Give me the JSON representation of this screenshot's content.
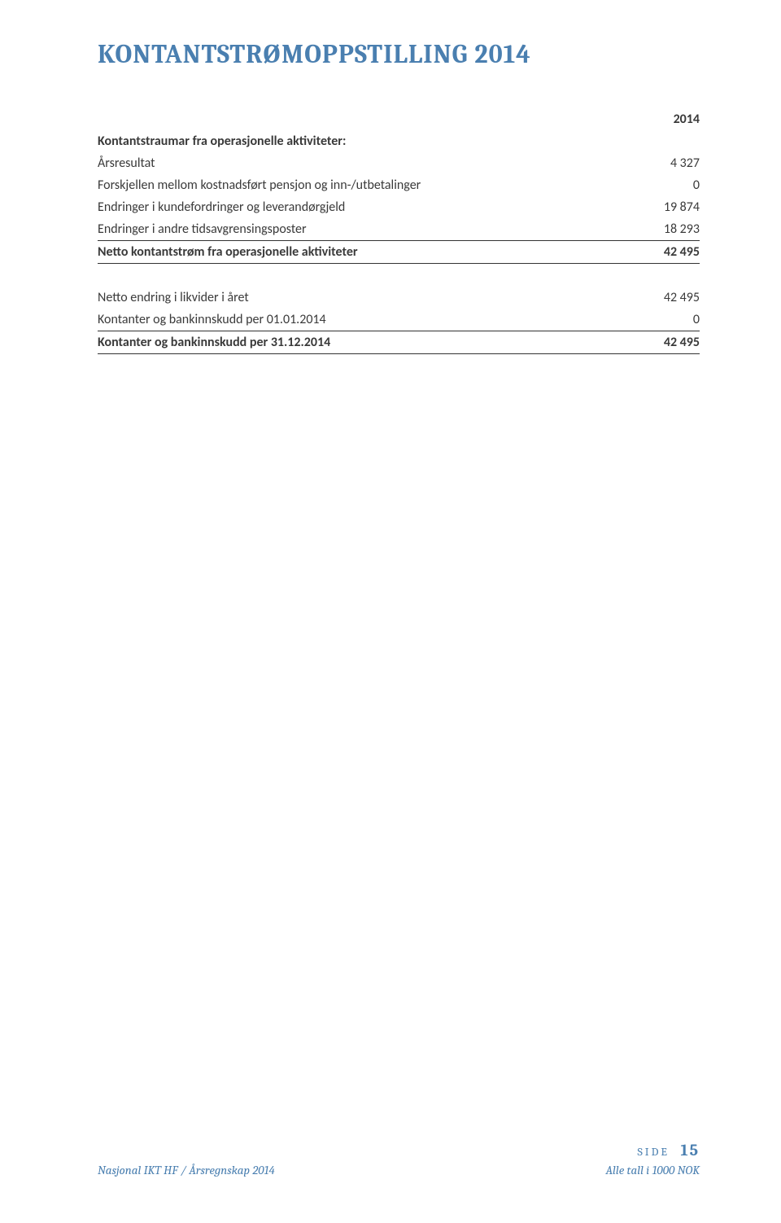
{
  "title": "KONTANTSTRØMOPPSTILLING 2014",
  "yearHeader": "2014",
  "sectionA": {
    "header": "Kontantstraumar fra operasjonelle aktiviteter:",
    "rows": [
      {
        "label": "Årsresultat",
        "value": "4 327"
      },
      {
        "label": "Forskjellen mellom kostnadsført pensjon og inn-/utbetalinger",
        "value": "0"
      },
      {
        "label": "Endringer i kundefordringer og leverandørgjeld",
        "value": "19 874"
      },
      {
        "label": "Endringer i andre tidsavgrensingsposter",
        "value": "18 293"
      }
    ],
    "total": {
      "label": "Netto kontantstrøm fra operasjonelle aktiviteter",
      "value": "42 495"
    }
  },
  "sectionB": {
    "rows": [
      {
        "label": "Netto endring i likvider i året",
        "value": "42 495"
      },
      {
        "label": "Kontanter og bankinnskudd per 01.01.2014",
        "value": "0"
      }
    ],
    "total": {
      "label": "Kontanter og bankinnskudd per 31.12.2014",
      "value": "42 495"
    }
  },
  "footer": {
    "left": "Nasjonal IKT HF / Årsregnskap 2014",
    "sideLabel": "SIDE",
    "pageNumber": "15",
    "sub": "Alle tall i  1000 NOK"
  },
  "colors": {
    "accent": "#4a7fb0",
    "text": "#333333",
    "background": "#ffffff",
    "rule": "#333333"
  }
}
